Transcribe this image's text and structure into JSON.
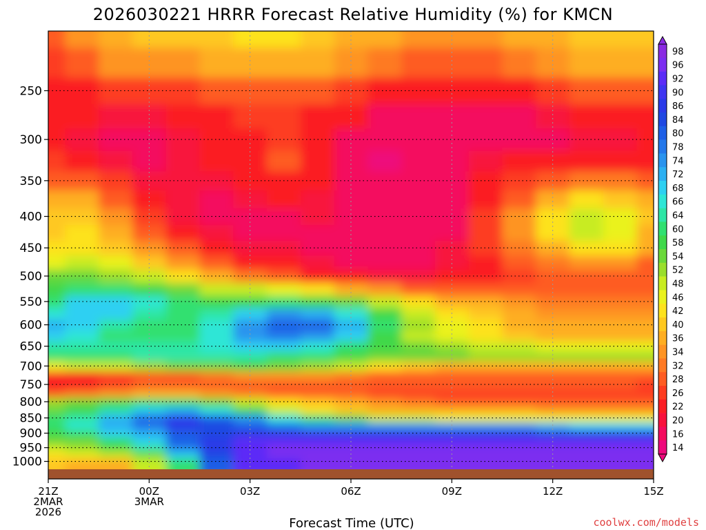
{
  "chart_data": {
    "type": "heatmap",
    "title": "2026030221 HRRR Forecast Relative Humidity (%) for KMCN",
    "xlabel": "Forecast Time (UTC)",
    "ylabel": "",
    "credit": "coolwx.com/models",
    "y_scale": "log",
    "y_range": [
      1030,
      200
    ],
    "y_ticks": [
      250,
      300,
      350,
      400,
      450,
      500,
      550,
      600,
      650,
      700,
      750,
      800,
      850,
      900,
      950,
      1000
    ],
    "x_range": [
      0,
      18
    ],
    "x_ticks": [
      {
        "hour": 0,
        "lines": [
          "21Z",
          "2MAR",
          "2026"
        ]
      },
      {
        "hour": 3,
        "lines": [
          "00Z",
          "3MAR"
        ]
      },
      {
        "hour": 6,
        "lines": [
          "03Z"
        ]
      },
      {
        "hour": 9,
        "lines": [
          "06Z"
        ]
      },
      {
        "hour": 12,
        "lines": [
          "09Z"
        ]
      },
      {
        "hour": 15,
        "lines": [
          "12Z"
        ]
      },
      {
        "hour": 18,
        "lines": [
          "15Z"
        ]
      }
    ],
    "colorbar": {
      "levels": [
        98,
        96,
        92,
        90,
        86,
        84,
        80,
        78,
        74,
        72,
        68,
        66,
        64,
        60,
        58,
        54,
        52,
        48,
        46,
        42,
        40,
        36,
        34,
        32,
        28,
        26,
        22,
        20,
        16,
        14
      ],
      "colors": [
        "#8a2be2",
        "#7c2ef0",
        "#5b2cf7",
        "#3e35f0",
        "#2a3ae8",
        "#1f48e2",
        "#1e5fe6",
        "#2478ea",
        "#2a94ee",
        "#2cb0f2",
        "#2ed0f2",
        "#2ee6d6",
        "#2ee6a6",
        "#30e070",
        "#3fd84a",
        "#6ad83a",
        "#9ade2c",
        "#c8ec22",
        "#eaf21e",
        "#fde21e",
        "#fec820",
        "#feae22",
        "#fe9424",
        "#fe7a24",
        "#fe5c22",
        "#fd3c20",
        "#fb1e24",
        "#f8123c",
        "#f40c5e",
        "#ee0a7c"
      ]
    },
    "pressure_levels": [
      1000,
      975,
      950,
      925,
      900,
      875,
      850,
      825,
      800,
      775,
      750,
      725,
      700,
      675,
      650,
      625,
      600,
      575,
      550,
      525,
      500,
      475,
      450,
      425,
      400,
      375,
      350,
      325,
      300,
      275,
      250,
      225,
      200
    ],
    "hours": [
      0,
      1,
      2,
      3,
      4,
      5,
      6,
      7,
      8,
      9,
      10,
      11,
      12,
      13,
      14,
      15,
      16,
      17,
      18
    ],
    "rh_values": [
      [
        40,
        38,
        36,
        48,
        62,
        82,
        92,
        94,
        96,
        96,
        96,
        96,
        96,
        96,
        96,
        96,
        96,
        96,
        96
      ],
      [
        44,
        46,
        50,
        56,
        70,
        84,
        94,
        96,
        96,
        96,
        96,
        96,
        96,
        96,
        96,
        96,
        96,
        96,
        96
      ],
      [
        50,
        52,
        58,
        64,
        78,
        86,
        94,
        96,
        96,
        96,
        96,
        96,
        96,
        96,
        96,
        96,
        96,
        96,
        96
      ],
      [
        54,
        56,
        62,
        70,
        80,
        86,
        92,
        94,
        94,
        94,
        94,
        94,
        94,
        94,
        94,
        94,
        92,
        92,
        92
      ],
      [
        58,
        62,
        68,
        72,
        82,
        84,
        86,
        86,
        86,
        86,
        86,
        86,
        86,
        86,
        86,
        84,
        84,
        84,
        84
      ],
      [
        62,
        66,
        72,
        78,
        86,
        84,
        80,
        78,
        76,
        76,
        74,
        74,
        74,
        74,
        74,
        72,
        70,
        70,
        70
      ],
      [
        62,
        64,
        72,
        82,
        86,
        80,
        74,
        66,
        60,
        54,
        50,
        48,
        46,
        46,
        46,
        46,
        46,
        46,
        46
      ],
      [
        56,
        58,
        64,
        70,
        72,
        66,
        58,
        50,
        44,
        40,
        38,
        36,
        36,
        36,
        36,
        34,
        34,
        34,
        34
      ],
      [
        52,
        56,
        58,
        60,
        60,
        56,
        50,
        44,
        40,
        36,
        34,
        32,
        30,
        30,
        30,
        30,
        30,
        30,
        30
      ],
      [
        30,
        32,
        34,
        36,
        36,
        34,
        32,
        30,
        28,
        28,
        26,
        26,
        26,
        26,
        26,
        26,
        26,
        26,
        26
      ],
      [
        24,
        24,
        26,
        28,
        28,
        28,
        28,
        28,
        28,
        28,
        28,
        28,
        28,
        28,
        28,
        28,
        28,
        28,
        26
      ],
      [
        24,
        24,
        26,
        28,
        30,
        32,
        34,
        34,
        34,
        32,
        30,
        28,
        28,
        28,
        28,
        28,
        28,
        28,
        28
      ],
      [
        46,
        48,
        50,
        52,
        54,
        56,
        58,
        56,
        52,
        48,
        44,
        40,
        38,
        36,
        36,
        36,
        36,
        36,
        36
      ],
      [
        60,
        62,
        62,
        64,
        64,
        64,
        64,
        62,
        60,
        58,
        56,
        54,
        54,
        52,
        52,
        52,
        52,
        52,
        52
      ],
      [
        64,
        64,
        64,
        64,
        64,
        66,
        68,
        68,
        66,
        62,
        58,
        54,
        52,
        50,
        48,
        46,
        46,
        46,
        46
      ],
      [
        70,
        66,
        62,
        62,
        62,
        66,
        74,
        78,
        76,
        68,
        58,
        50,
        46,
        42,
        40,
        38,
        38,
        38,
        38
      ],
      [
        72,
        68,
        64,
        62,
        62,
        66,
        74,
        82,
        80,
        72,
        60,
        52,
        46,
        42,
        38,
        36,
        36,
        36,
        36
      ],
      [
        66,
        70,
        70,
        64,
        62,
        64,
        68,
        74,
        72,
        66,
        58,
        50,
        44,
        40,
        36,
        34,
        34,
        34,
        34
      ],
      [
        62,
        68,
        70,
        66,
        60,
        58,
        58,
        60,
        58,
        54,
        48,
        42,
        38,
        36,
        34,
        32,
        32,
        32,
        32
      ],
      [
        58,
        60,
        60,
        58,
        54,
        50,
        48,
        46,
        42,
        38,
        34,
        30,
        28,
        28,
        28,
        28,
        28,
        28,
        28
      ],
      [
        54,
        54,
        52,
        48,
        42,
        36,
        32,
        28,
        24,
        22,
        20,
        20,
        22,
        24,
        26,
        28,
        30,
        30,
        28
      ],
      [
        46,
        48,
        46,
        40,
        34,
        28,
        24,
        22,
        20,
        18,
        18,
        18,
        20,
        24,
        28,
        32,
        34,
        34,
        30
      ],
      [
        42,
        44,
        40,
        34,
        28,
        22,
        20,
        20,
        18,
        16,
        16,
        16,
        20,
        26,
        32,
        38,
        42,
        42,
        36
      ],
      [
        40,
        42,
        38,
        30,
        24,
        20,
        18,
        18,
        18,
        16,
        16,
        16,
        18,
        26,
        34,
        42,
        48,
        46,
        38
      ],
      [
        40,
        40,
        34,
        26,
        20,
        18,
        16,
        18,
        20,
        18,
        16,
        16,
        18,
        26,
        34,
        44,
        48,
        46,
        40
      ],
      [
        36,
        36,
        30,
        22,
        20,
        18,
        20,
        22,
        20,
        18,
        16,
        16,
        18,
        24,
        30,
        38,
        42,
        40,
        36
      ],
      [
        30,
        30,
        26,
        20,
        20,
        20,
        22,
        24,
        22,
        18,
        16,
        16,
        18,
        22,
        26,
        30,
        32,
        32,
        30
      ],
      [
        26,
        24,
        20,
        18,
        20,
        22,
        24,
        28,
        24,
        18,
        14,
        16,
        18,
        20,
        22,
        24,
        24,
        24,
        24
      ],
      [
        22,
        20,
        18,
        18,
        20,
        22,
        24,
        26,
        22,
        18,
        16,
        16,
        16,
        18,
        18,
        18,
        20,
        20,
        22
      ],
      [
        24,
        22,
        20,
        20,
        22,
        24,
        26,
        26,
        24,
        22,
        18,
        16,
        16,
        16,
        18,
        20,
        22,
        24,
        24
      ],
      [
        22,
        24,
        26,
        26,
        26,
        28,
        30,
        30,
        28,
        26,
        24,
        22,
        22,
        22,
        24,
        26,
        28,
        30,
        30
      ],
      [
        26,
        30,
        34,
        34,
        34,
        36,
        38,
        38,
        36,
        34,
        32,
        30,
        30,
        30,
        32,
        34,
        36,
        36,
        36
      ],
      [
        30,
        34,
        38,
        40,
        40,
        40,
        42,
        42,
        40,
        38,
        36,
        34,
        34,
        34,
        36,
        38,
        40,
        40,
        40
      ]
    ]
  }
}
